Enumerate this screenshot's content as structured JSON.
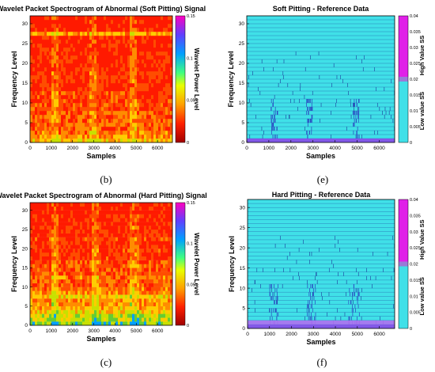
{
  "chart_data": [
    {
      "id": "b",
      "type": "heatmap",
      "title": "Wavelet Packet Spectrogram of Abnormal (Soft Pitting) Signal",
      "xlabel": "Samples",
      "ylabel": "Frequency Level",
      "xlim": [
        0,
        6700
      ],
      "ylim": [
        0,
        32
      ],
      "xticks": [
        0,
        1000,
        2000,
        3000,
        4000,
        5000,
        6000
      ],
      "yticks": [
        0,
        5,
        10,
        15,
        20,
        25,
        30
      ],
      "colorbar": {
        "label": "Wavelet Power Level",
        "min": 0,
        "max": 0.15,
        "ticks": [
          0,
          0.05,
          0.1,
          0.15
        ],
        "tick_labels": [
          "0",
          "0.05",
          "0.1",
          "0.15"
        ]
      },
      "caption": "(b)",
      "colors": [
        "#ff1a00",
        "#ff4d00",
        "#ff8c00",
        "#ffcc00",
        "#c8e000",
        "#66cc33",
        "#00a0ff"
      ],
      "row_intensity": [
        0.55,
        0.42,
        0.35,
        0.3,
        0.3,
        0.3,
        0.3,
        0.3,
        0.25,
        0.25,
        0.22,
        0.22,
        0.22,
        0.18,
        0.18,
        0.18,
        0.18,
        0.18,
        0.15,
        0.15,
        0.15,
        0.15,
        0.15,
        0.12,
        0.12,
        0.12,
        0.12,
        0.45,
        0.1,
        0.08,
        0.08,
        0.08
      ],
      "activity_bands": [
        [
          1000,
          1300
        ],
        [
          2800,
          3100
        ],
        [
          4700,
          5000
        ]
      ]
    },
    {
      "id": "c",
      "type": "heatmap",
      "title": "Wavelet Packet Spectrogram of Abnormal (Hard Pitting) Signal",
      "xlabel": "Samples",
      "ylabel": "Frequency Level",
      "xlim": [
        0,
        6700
      ],
      "ylim": [
        0,
        32
      ],
      "xticks": [
        0,
        1000,
        2000,
        3000,
        4000,
        5000,
        6000
      ],
      "yticks": [
        0,
        5,
        10,
        15,
        20,
        25,
        30
      ],
      "colorbar": {
        "label": "Wavelet Power Level",
        "min": 0,
        "max": 0.15,
        "ticks": [
          0,
          0.05,
          0.1,
          0.15
        ],
        "tick_labels": [
          "0",
          "0.05",
          "0.1",
          "0.15"
        ]
      },
      "caption": "(c)",
      "colors": [
        "#ff1a00",
        "#ff4d00",
        "#ff8c00",
        "#ffcc00",
        "#c8e000",
        "#66cc33",
        "#00a0ff"
      ],
      "row_intensity": [
        0.85,
        0.75,
        0.7,
        0.6,
        0.5,
        0.45,
        0.4,
        0.55,
        0.4,
        0.35,
        0.3,
        0.3,
        0.35,
        0.25,
        0.25,
        0.3,
        0.25,
        0.2,
        0.2,
        0.2,
        0.18,
        0.18,
        0.2,
        0.15,
        0.15,
        0.15,
        0.12,
        0.12,
        0.1,
        0.1,
        0.08,
        0.08
      ],
      "activity_bands": [
        [
          1000,
          1300
        ],
        [
          2900,
          3200
        ],
        [
          4700,
          5100
        ]
      ]
    },
    {
      "id": "e",
      "type": "heatmap",
      "title": "Soft Pitting - Reference Data",
      "xlabel": "Samples",
      "ylabel": "Frequency Level",
      "xlim": [
        0,
        6700
      ],
      "ylim": [
        0,
        32
      ],
      "xticks": [
        0,
        1000,
        2000,
        3000,
        4000,
        5000,
        6000
      ],
      "yticks": [
        0,
        5,
        10,
        15,
        20,
        25,
        30
      ],
      "colorbar": {
        "min": 0,
        "max": 0.04,
        "ticks": [
          0,
          0.005,
          0.01,
          0.015,
          0.02,
          0.025,
          0.03,
          0.035,
          0.04
        ],
        "tick_labels": [
          "0",
          "0.005",
          "0.01",
          "0.015",
          "0.02",
          "0.025",
          "0.03",
          "0.035",
          "0.04"
        ],
        "high_label": "High Value SS",
        "low_label": "Low value SS"
      },
      "caption": "(e)",
      "base_color": "#40e0e8",
      "line_color": "#1a3a9a",
      "high_color": "#e020e8",
      "violet_rows": [
        0
      ],
      "event_bands": [
        [
          1100,
          1400
        ],
        [
          2700,
          3000
        ],
        [
          4800,
          5100
        ]
      ]
    },
    {
      "id": "f",
      "type": "heatmap",
      "title": "Hard Pitting - Reference Data",
      "xlabel": "Samples",
      "ylabel": "Frequency Level",
      "xlim": [
        0,
        6700
      ],
      "ylim": [
        0,
        32
      ],
      "xticks": [
        0,
        1000,
        2000,
        3000,
        4000,
        5000,
        6000
      ],
      "yticks": [
        0,
        5,
        10,
        15,
        20,
        25,
        30
      ],
      "colorbar": {
        "min": 0,
        "max": 0.04,
        "ticks": [
          0,
          0.005,
          0.01,
          0.015,
          0.02,
          0.025,
          0.03,
          0.035,
          0.04
        ],
        "tick_labels": [
          "0",
          "0.005",
          "0.01",
          "0.015",
          "0.02",
          "0.025",
          "0.03",
          "0.035",
          "0.04"
        ],
        "high_label": "High Value SS",
        "low_label": "Low value SS"
      },
      "caption": "(f)",
      "base_color": "#40e0e8",
      "line_color": "#1a3a9a",
      "high_color": "#e020e8",
      "violet_rows": [
        0,
        1
      ],
      "event_bands": [
        [
          1000,
          1400
        ],
        [
          2700,
          3100
        ],
        [
          4600,
          5100
        ]
      ]
    }
  ]
}
